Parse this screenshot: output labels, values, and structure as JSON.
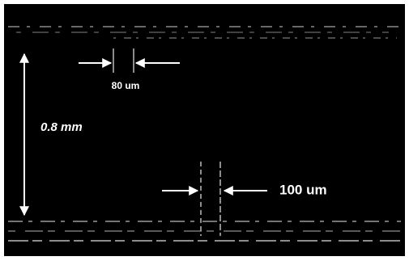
{
  "annotations": {
    "top_gap": "80 um",
    "height": "0.8 mm",
    "bottom_gap": "100 um"
  }
}
